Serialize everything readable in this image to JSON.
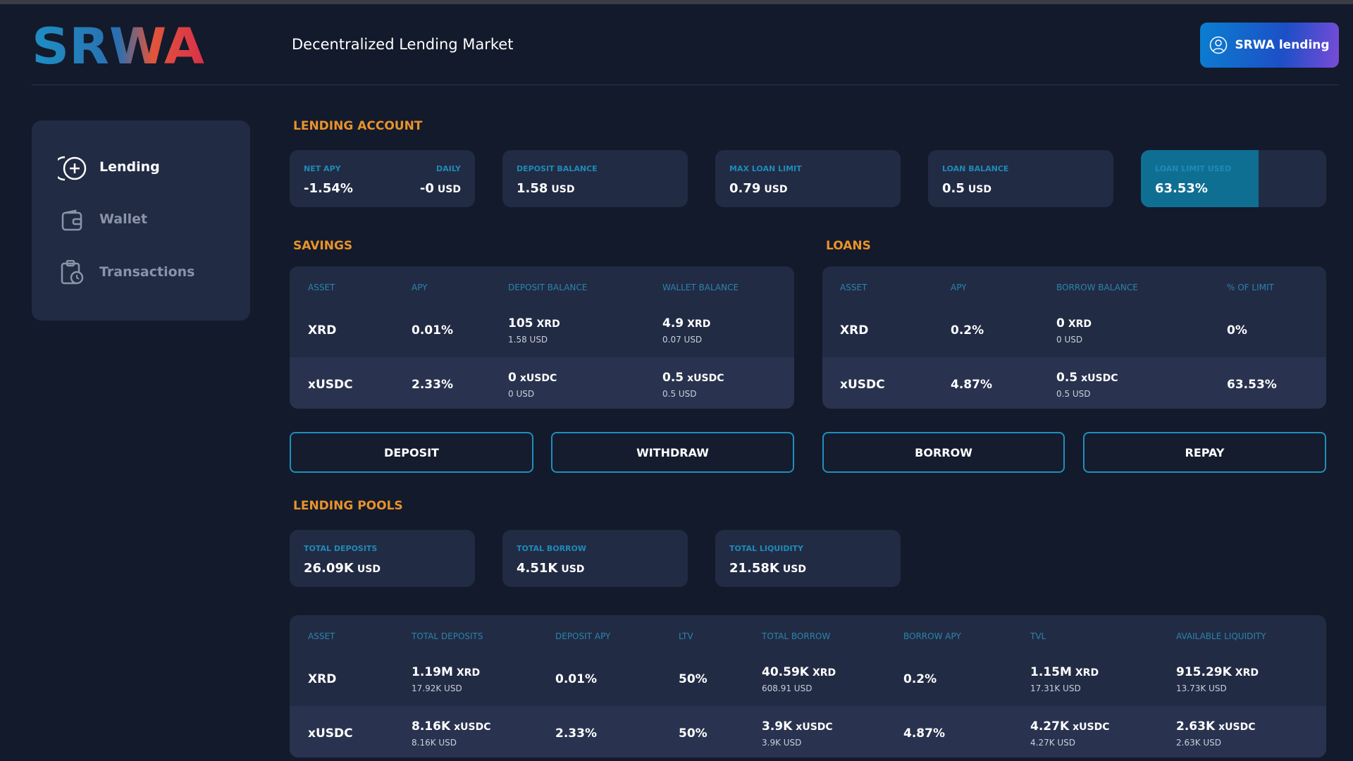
{
  "header": {
    "logo": "SRWA",
    "title": "Decentralized Lending Market",
    "account_button": "SRWA lending"
  },
  "sidebar": {
    "items": [
      "Lending",
      "Wallet",
      "Transactions"
    ]
  },
  "lending_account": {
    "title": "LENDING ACCOUNT",
    "cards": [
      {
        "label": "NET APY",
        "value": "-1.54%",
        "label2": "DAILY",
        "amount": "-0",
        "unit": "USD"
      },
      {
        "label": "DEPOSIT BALANCE",
        "amount": "1.58",
        "unit": "USD"
      },
      {
        "label": "MAX LOAN LIMIT",
        "amount": "0.79",
        "unit": "USD"
      },
      {
        "label": "LOAN BALANCE",
        "amount": "0.5",
        "unit": "USD"
      },
      {
        "label": "LOAN LIMIT USED",
        "value": 63.53,
        "value_label": "63.53%"
      }
    ]
  },
  "savings": {
    "title": "SAVINGS",
    "columns": [
      "ASSET",
      "APY",
      "DEPOSIT BALANCE",
      "WALLET BALANCE"
    ],
    "rows": [
      [
        "XRD",
        "0.01%",
        {
          "amount": "105",
          "unit": "XRD",
          "sub": "1.58 USD"
        },
        {
          "amount": "4.9",
          "unit": "XRD",
          "sub": "0.07 USD"
        }
      ],
      [
        "xUSDC",
        "2.33%",
        {
          "amount": "0",
          "unit": "xUSDC",
          "sub": "0 USD"
        },
        {
          "amount": "0.5",
          "unit": "xUSDC",
          "sub": "0.5 USD"
        }
      ]
    ]
  },
  "loans": {
    "title": "LOANS",
    "columns": [
      "ASSET",
      "APY",
      "BORROW BALANCE",
      "% OF LIMIT"
    ],
    "rows": [
      [
        "XRD",
        "0.2%",
        {
          "amount": "0",
          "unit": "XRD",
          "sub": "0 USD"
        },
        "0%"
      ],
      [
        "xUSDC",
        "4.87%",
        {
          "amount": "0.5",
          "unit": "xUSDC",
          "sub": "0.5 USD"
        },
        "63.53%"
      ]
    ]
  },
  "actions": [
    "DEPOSIT",
    "WITHDRAW",
    "BORROW",
    "REPAY"
  ],
  "lending_pools": {
    "title": "LENDING POOLS",
    "cards": [
      {
        "label": "TOTAL DEPOSITS",
        "amount": "26.09K",
        "unit": "USD"
      },
      {
        "label": "TOTAL BORROW",
        "amount": "4.51K",
        "unit": "USD"
      },
      {
        "label": "TOTAL LIQUIDITY",
        "amount": "21.58K",
        "unit": "USD"
      }
    ],
    "columns": [
      "ASSET",
      "TOTAL DEPOSITS",
      "DEPOSIT APY",
      "LTV",
      "TOTAL BORROW",
      "BORROW APY",
      "TVL",
      "AVAILABLE LIQUIDITY"
    ],
    "rows": [
      [
        "XRD",
        {
          "amount": "1.19M",
          "unit": "XRD",
          "sub": "17.92K USD"
        },
        "0.01%",
        "50%",
        {
          "amount": "40.59K",
          "unit": "XRD",
          "sub": "608.91 USD"
        },
        "0.2%",
        {
          "amount": "1.15M",
          "unit": "XRD",
          "sub": "17.31K USD"
        },
        {
          "amount": "915.29K",
          "unit": "XRD",
          "sub": "13.73K USD"
        }
      ],
      [
        "xUSDC",
        {
          "amount": "8.16K",
          "unit": "xUSDC",
          "sub": "8.16K USD"
        },
        "2.33%",
        "50%",
        {
          "amount": "3.9K",
          "unit": "xUSDC",
          "sub": "3.9K USD"
        },
        "4.87%",
        {
          "amount": "4.27K",
          "unit": "xUSDC",
          "sub": "4.27K USD"
        },
        {
          "amount": "2.63K",
          "unit": "xUSDC",
          "sub": "2.63K USD"
        }
      ]
    ]
  }
}
